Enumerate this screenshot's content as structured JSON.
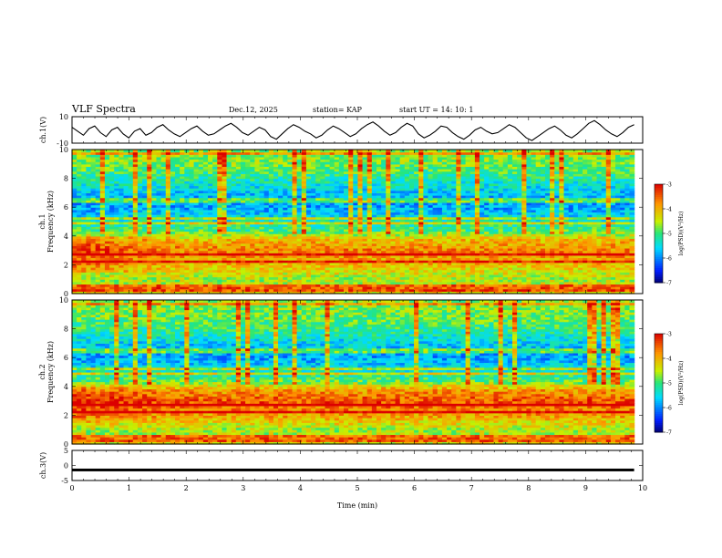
{
  "header": {
    "title": "VLF Spectra",
    "date": "Dec.12, 2025",
    "station": "station= KAP",
    "start": "start  UT =  14: 10: 1"
  },
  "chart_data": [
    {
      "type": "line",
      "id": "ch1_waveform",
      "ylabel": "ch.1(V)",
      "ylim": [
        -10,
        10
      ],
      "yticks": [
        10,
        -10
      ],
      "xlim": [
        0,
        10
      ],
      "x_extent": 9.85,
      "series": [
        {
          "name": "ch.1",
          "color": "#000000",
          "values": [
            2,
            -1,
            -4,
            1,
            3,
            -2,
            -5,
            0,
            2,
            -3,
            -6,
            -1,
            1,
            -4,
            -2,
            2,
            4,
            0,
            -3,
            -5,
            -2,
            1,
            3,
            -1,
            -4,
            -3,
            0,
            3,
            5,
            2,
            -2,
            -4,
            -1,
            2,
            0,
            -5,
            -7,
            -3,
            1,
            4,
            2,
            -1,
            -3,
            -6,
            -4,
            0,
            3,
            1,
            -2,
            -5,
            -3,
            1,
            4,
            6,
            3,
            -1,
            -4,
            -2,
            2,
            5,
            3,
            -3,
            -6,
            -4,
            -1,
            3,
            2,
            -2,
            -5,
            -7,
            -4,
            0,
            2,
            -1,
            -3,
            -2,
            1,
            4,
            2,
            -2,
            -6,
            -8,
            -5,
            -2,
            1,
            3,
            0,
            -4,
            -6,
            -3,
            1,
            5,
            7,
            4,
            0,
            -3,
            -5,
            -2,
            2,
            4
          ]
        }
      ]
    },
    {
      "type": "heatmap",
      "id": "ch1_spectrogram",
      "ylabel": "ch.1",
      "ylabel2": "Frequency (kHz)",
      "ylim": [
        0,
        10
      ],
      "yticks": [
        0,
        2,
        4,
        6,
        8,
        10
      ],
      "xlim": [
        0,
        10
      ],
      "x_extent": 9.85,
      "colorbar": {
        "label": "log(PSD)(V²/Hz)",
        "range": [
          -7,
          -3
        ],
        "ticks": [
          -3,
          -4,
          -5,
          -6,
          -7
        ]
      },
      "spectral_profile": [
        {
          "f": 0.3,
          "level": -4.3
        },
        {
          "f": 1.0,
          "level": -4.6
        },
        {
          "f": 2.0,
          "level": -4.1
        },
        {
          "f": 3.0,
          "level": -3.7
        },
        {
          "f": 3.8,
          "level": -4.1
        },
        {
          "f": 4.4,
          "level": -5.0
        },
        {
          "f": 5.0,
          "level": -5.3
        },
        {
          "f": 6.0,
          "level": -5.9
        },
        {
          "f": 7.0,
          "level": -5.7
        },
        {
          "f": 8.0,
          "level": -5.2
        },
        {
          "f": 9.0,
          "level": -4.8
        },
        {
          "f": 10.0,
          "level": -4.7
        }
      ],
      "transmitter_lines_khz": [
        0.3,
        0.5,
        2.2,
        2.7,
        4.9,
        5.3,
        6.5,
        9.8
      ],
      "low_band_fade": {
        "until_min": 2.0,
        "delta": 0.45
      }
    },
    {
      "type": "heatmap",
      "id": "ch2_spectrogram",
      "ylabel": "ch.2",
      "ylabel2": "Frequency (kHz)",
      "ylim": [
        0,
        10
      ],
      "yticks": [
        0,
        2,
        4,
        6,
        8,
        10
      ],
      "xlim": [
        0,
        10
      ],
      "x_extent": 9.85,
      "colorbar": {
        "label": "log(PSD)(V²/Hz)",
        "range": [
          -7,
          -3
        ],
        "ticks": [
          -3,
          -4,
          -5,
          -6,
          -7
        ]
      },
      "spectral_profile": [
        {
          "f": 0.3,
          "level": -4.4
        },
        {
          "f": 1.0,
          "level": -4.6
        },
        {
          "f": 2.0,
          "level": -3.9
        },
        {
          "f": 3.0,
          "level": -3.4
        },
        {
          "f": 3.8,
          "level": -3.9
        },
        {
          "f": 4.4,
          "level": -4.9
        },
        {
          "f": 5.0,
          "level": -5.3
        },
        {
          "f": 6.0,
          "level": -5.9
        },
        {
          "f": 7.0,
          "level": -5.6
        },
        {
          "f": 8.0,
          "level": -5.1
        },
        {
          "f": 9.0,
          "level": -4.8
        },
        {
          "f": 10.0,
          "level": -4.7
        }
      ],
      "transmitter_lines_khz": [
        0.3,
        0.5,
        2.2,
        2.7,
        4.9,
        5.3,
        6.5,
        9.8
      ],
      "low_band_fade": {
        "until_min": 2.0,
        "delta": 0.3
      }
    },
    {
      "type": "line",
      "id": "ch3_waveform",
      "ylabel": "ch.3(V)",
      "ylim": [
        -5,
        5
      ],
      "yticks": [
        5,
        0,
        -5
      ],
      "xlim": [
        0,
        10
      ],
      "x_extent": 9.85,
      "xticks": [
        0,
        1,
        2,
        3,
        4,
        5,
        6,
        7,
        8,
        9,
        10
      ],
      "xlabel": "Time (min)",
      "series": [
        {
          "name": "ch.3",
          "color": "#000000",
          "level": -1.5,
          "band_halfwidth": 0.45
        }
      ]
    }
  ]
}
